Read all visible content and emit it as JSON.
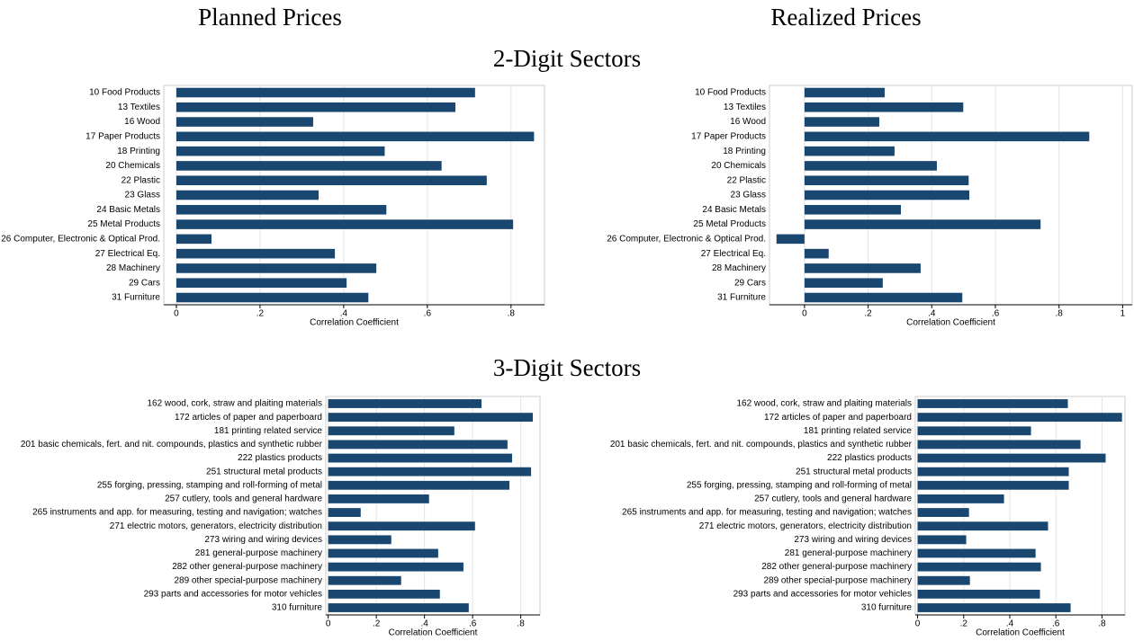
{
  "column_titles": [
    "Planned Prices",
    "Realized Prices"
  ],
  "row_titles": [
    "2-Digit Sectors",
    "3-Digit Sectors"
  ],
  "chart_data": [
    {
      "type": "barh",
      "xlabel": "Correlation Coefficient",
      "color": "#1a476f",
      "grid": true,
      "categories": [
        "10 Food Products",
        "13 Textiles",
        "16 Wood",
        "17 Paper Products",
        "18 Printing",
        "20 Chemicals",
        "22 Plastic",
        "23 Glass",
        "24 Basic Metals",
        "25 Metal Products",
        "26 Computer, Electronic & Optical Prod.",
        "27 Electrical Eq.",
        "28 Machinery",
        "29 Cars",
        "31 Furniture"
      ],
      "values": [
        0.714,
        0.667,
        0.327,
        0.855,
        0.498,
        0.634,
        0.742,
        0.34,
        0.502,
        0.805,
        0.084,
        0.379,
        0.478,
        0.407,
        0.459
      ],
      "xlim": [
        -0.03,
        0.88
      ],
      "xticks": [
        0,
        {
          "value": 0.2,
          "label": ".2"
        },
        {
          "value": 0.4,
          "label": ".4"
        },
        {
          "value": 0.6,
          "label": ".6"
        },
        {
          "value": 0.8,
          "label": ".8"
        }
      ]
    },
    {
      "type": "barh",
      "xlabel": "Correlation Coefficient",
      "color": "#1a476f",
      "grid": true,
      "categories": [
        "10 Food Products",
        "13 Textiles",
        "16 Wood",
        "17 Paper Products",
        "18 Printing",
        "20 Chemicals",
        "22 Plastic",
        "23 Glass",
        "24 Basic Metals",
        "25 Metal Products",
        "26 Computer, Electronic & Optical Prod.",
        "27 Electrical Eq.",
        "28 Machinery",
        "29 Cars",
        "31 Furniture"
      ],
      "values": [
        0.252,
        0.499,
        0.235,
        0.895,
        0.283,
        0.416,
        0.516,
        0.518,
        0.303,
        0.742,
        -0.088,
        0.076,
        0.365,
        0.246,
        0.496
      ],
      "xlim": [
        -0.11,
        1.03
      ],
      "xticks": [
        0,
        {
          "value": 0.2,
          "label": ".2"
        },
        {
          "value": 0.4,
          "label": ".4"
        },
        {
          "value": 0.6,
          "label": ".6"
        },
        {
          "value": 0.8,
          "label": ".8"
        },
        1
      ]
    },
    {
      "type": "barh",
      "xlabel": "Correlation Coefficient",
      "color": "#1a476f",
      "grid": true,
      "categories": [
        "162 wood, cork, straw and plaiting materials",
        "172 articles of paper and paperboard",
        "181 printing related service",
        "201 basic chemicals, fert. and nit. compounds, plastics and synthetic rubber",
        "222 plastics products",
        "251 structural metal products",
        "255 forging, pressing, stamping and roll-forming of metal",
        "257 cutlery, tools and general hardware",
        "265 instruments and app. for measuring, testing and navigation; watches",
        "271 electric motors, generators, electricity distribution",
        "273 wiring and wiring devices",
        "281 general-purpose machinery",
        "282 other general-purpose machinery",
        "289 other special-purpose machinery",
        "293 parts and accessories for motor vehicles",
        "310 furniture"
      ],
      "values": [
        0.637,
        0.85,
        0.524,
        0.745,
        0.764,
        0.843,
        0.753,
        0.419,
        0.135,
        0.61,
        0.262,
        0.457,
        0.562,
        0.303,
        0.464,
        0.584
      ],
      "xlim": [
        -0.01,
        0.88
      ],
      "xticks": [
        0,
        {
          "value": 0.2,
          "label": ".2"
        },
        {
          "value": 0.4,
          "label": ".4"
        },
        {
          "value": 0.6,
          "label": ".6"
        },
        {
          "value": 0.8,
          "label": ".8"
        }
      ]
    },
    {
      "type": "barh",
      "xlabel": "Correlation Coefficient",
      "color": "#1a476f",
      "grid": true,
      "categories": [
        "162 wood, cork, straw and plaiting materials",
        "172 articles of paper and paperboard",
        "181 printing related service",
        "201 basic chemicals, fert. and nit. compounds, plastics and synthetic rubber",
        "222 plastics products",
        "251 structural metal products",
        "255 forging, pressing, stamping and roll-forming of metal",
        "257 cutlery, tools and general hardware",
        "265 instruments and app. for measuring, testing and navigation; watches",
        "271 electric motors, generators, electricity distribution",
        "273 wiring and wiring devices",
        "281 general-purpose machinery",
        "282 other general-purpose machinery",
        "289 other special-purpose machinery",
        "293 parts and accessories for motor vehicles",
        "310 furniture"
      ],
      "values": [
        0.652,
        0.887,
        0.492,
        0.707,
        0.816,
        0.656,
        0.656,
        0.375,
        0.223,
        0.566,
        0.211,
        0.512,
        0.535,
        0.227,
        0.531,
        0.664
      ],
      "xlim": [
        -0.01,
        0.9
      ],
      "xticks": [
        0,
        {
          "value": 0.2,
          "label": ".2"
        },
        {
          "value": 0.4,
          "label": ".4"
        },
        {
          "value": 0.6,
          "label": ".6"
        },
        {
          "value": 0.8,
          "label": ".8"
        }
      ]
    }
  ]
}
